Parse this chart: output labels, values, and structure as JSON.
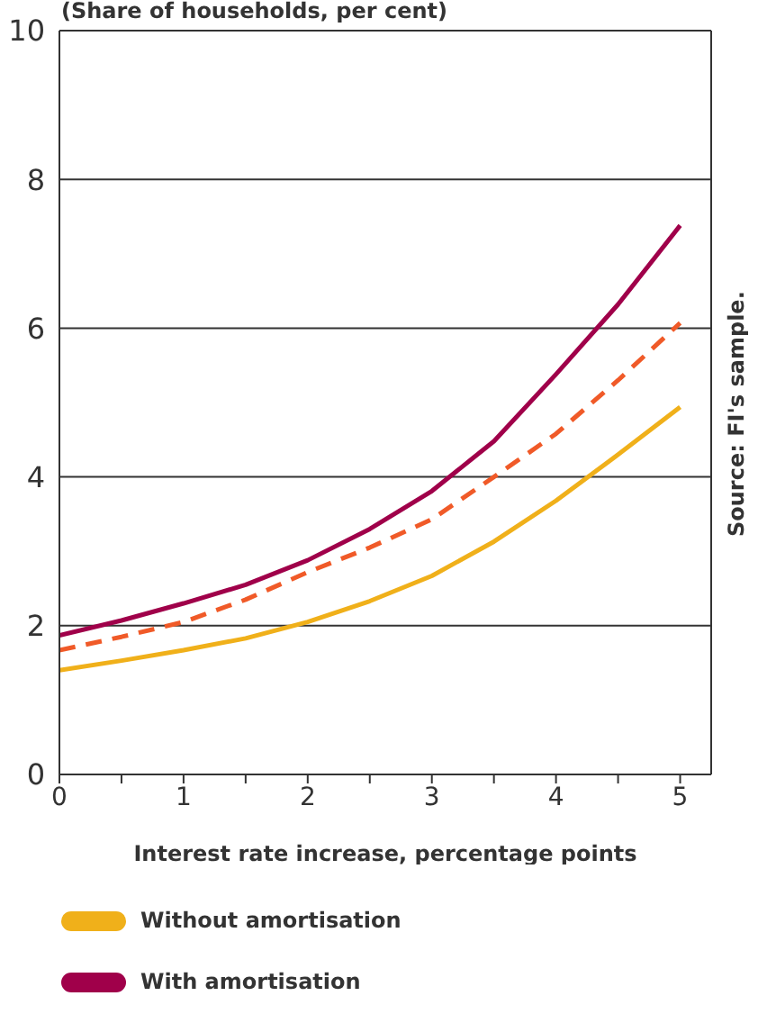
{
  "chart_data": {
    "type": "line",
    "subtitle": "(Share of households, per cent)",
    "xlabel": "Interest rate increase, percentage points",
    "x": [
      0,
      0.5,
      1,
      1.5,
      2,
      2.5,
      3,
      3.5,
      4,
      4.5,
      5
    ],
    "series": [
      {
        "name": "Without amortisation",
        "color": "#f0b01a",
        "values": [
          1.4,
          1.53,
          1.67,
          1.83,
          2.05,
          2.33,
          2.67,
          3.13,
          3.68,
          4.3,
          4.94
        ]
      },
      {
        "name": "With amortisation",
        "color": "#a0004a",
        "values": [
          1.87,
          2.07,
          2.3,
          2.55,
          2.88,
          3.3,
          3.81,
          4.48,
          5.38,
          6.32,
          7.38
        ]
      },
      {
        "color": "#f05a28",
        "line_style": "dashed",
        "values": [
          1.67,
          1.85,
          2.05,
          2.35,
          2.72,
          3.05,
          3.43,
          4.0,
          4.58,
          5.3,
          6.07
        ]
      }
    ],
    "xlim": [
      0,
      5.25
    ],
    "xticks": [
      0,
      {
        "value": 0.5,
        "label": null
      },
      1,
      {
        "value": 1.5,
        "label": null
      },
      2,
      {
        "value": 2.5,
        "label": null
      },
      3,
      {
        "value": 3.5,
        "label": null
      },
      4,
      {
        "value": 4.5,
        "label": null
      },
      5
    ],
    "ylim": [
      0,
      10
    ],
    "yticks": [
      0,
      2,
      4,
      6,
      8,
      10
    ],
    "grid": "y",
    "legend": "bottom",
    "marker": "none",
    "line_style": "solid",
    "annotations": [
      "Source: FI's sample."
    ]
  }
}
